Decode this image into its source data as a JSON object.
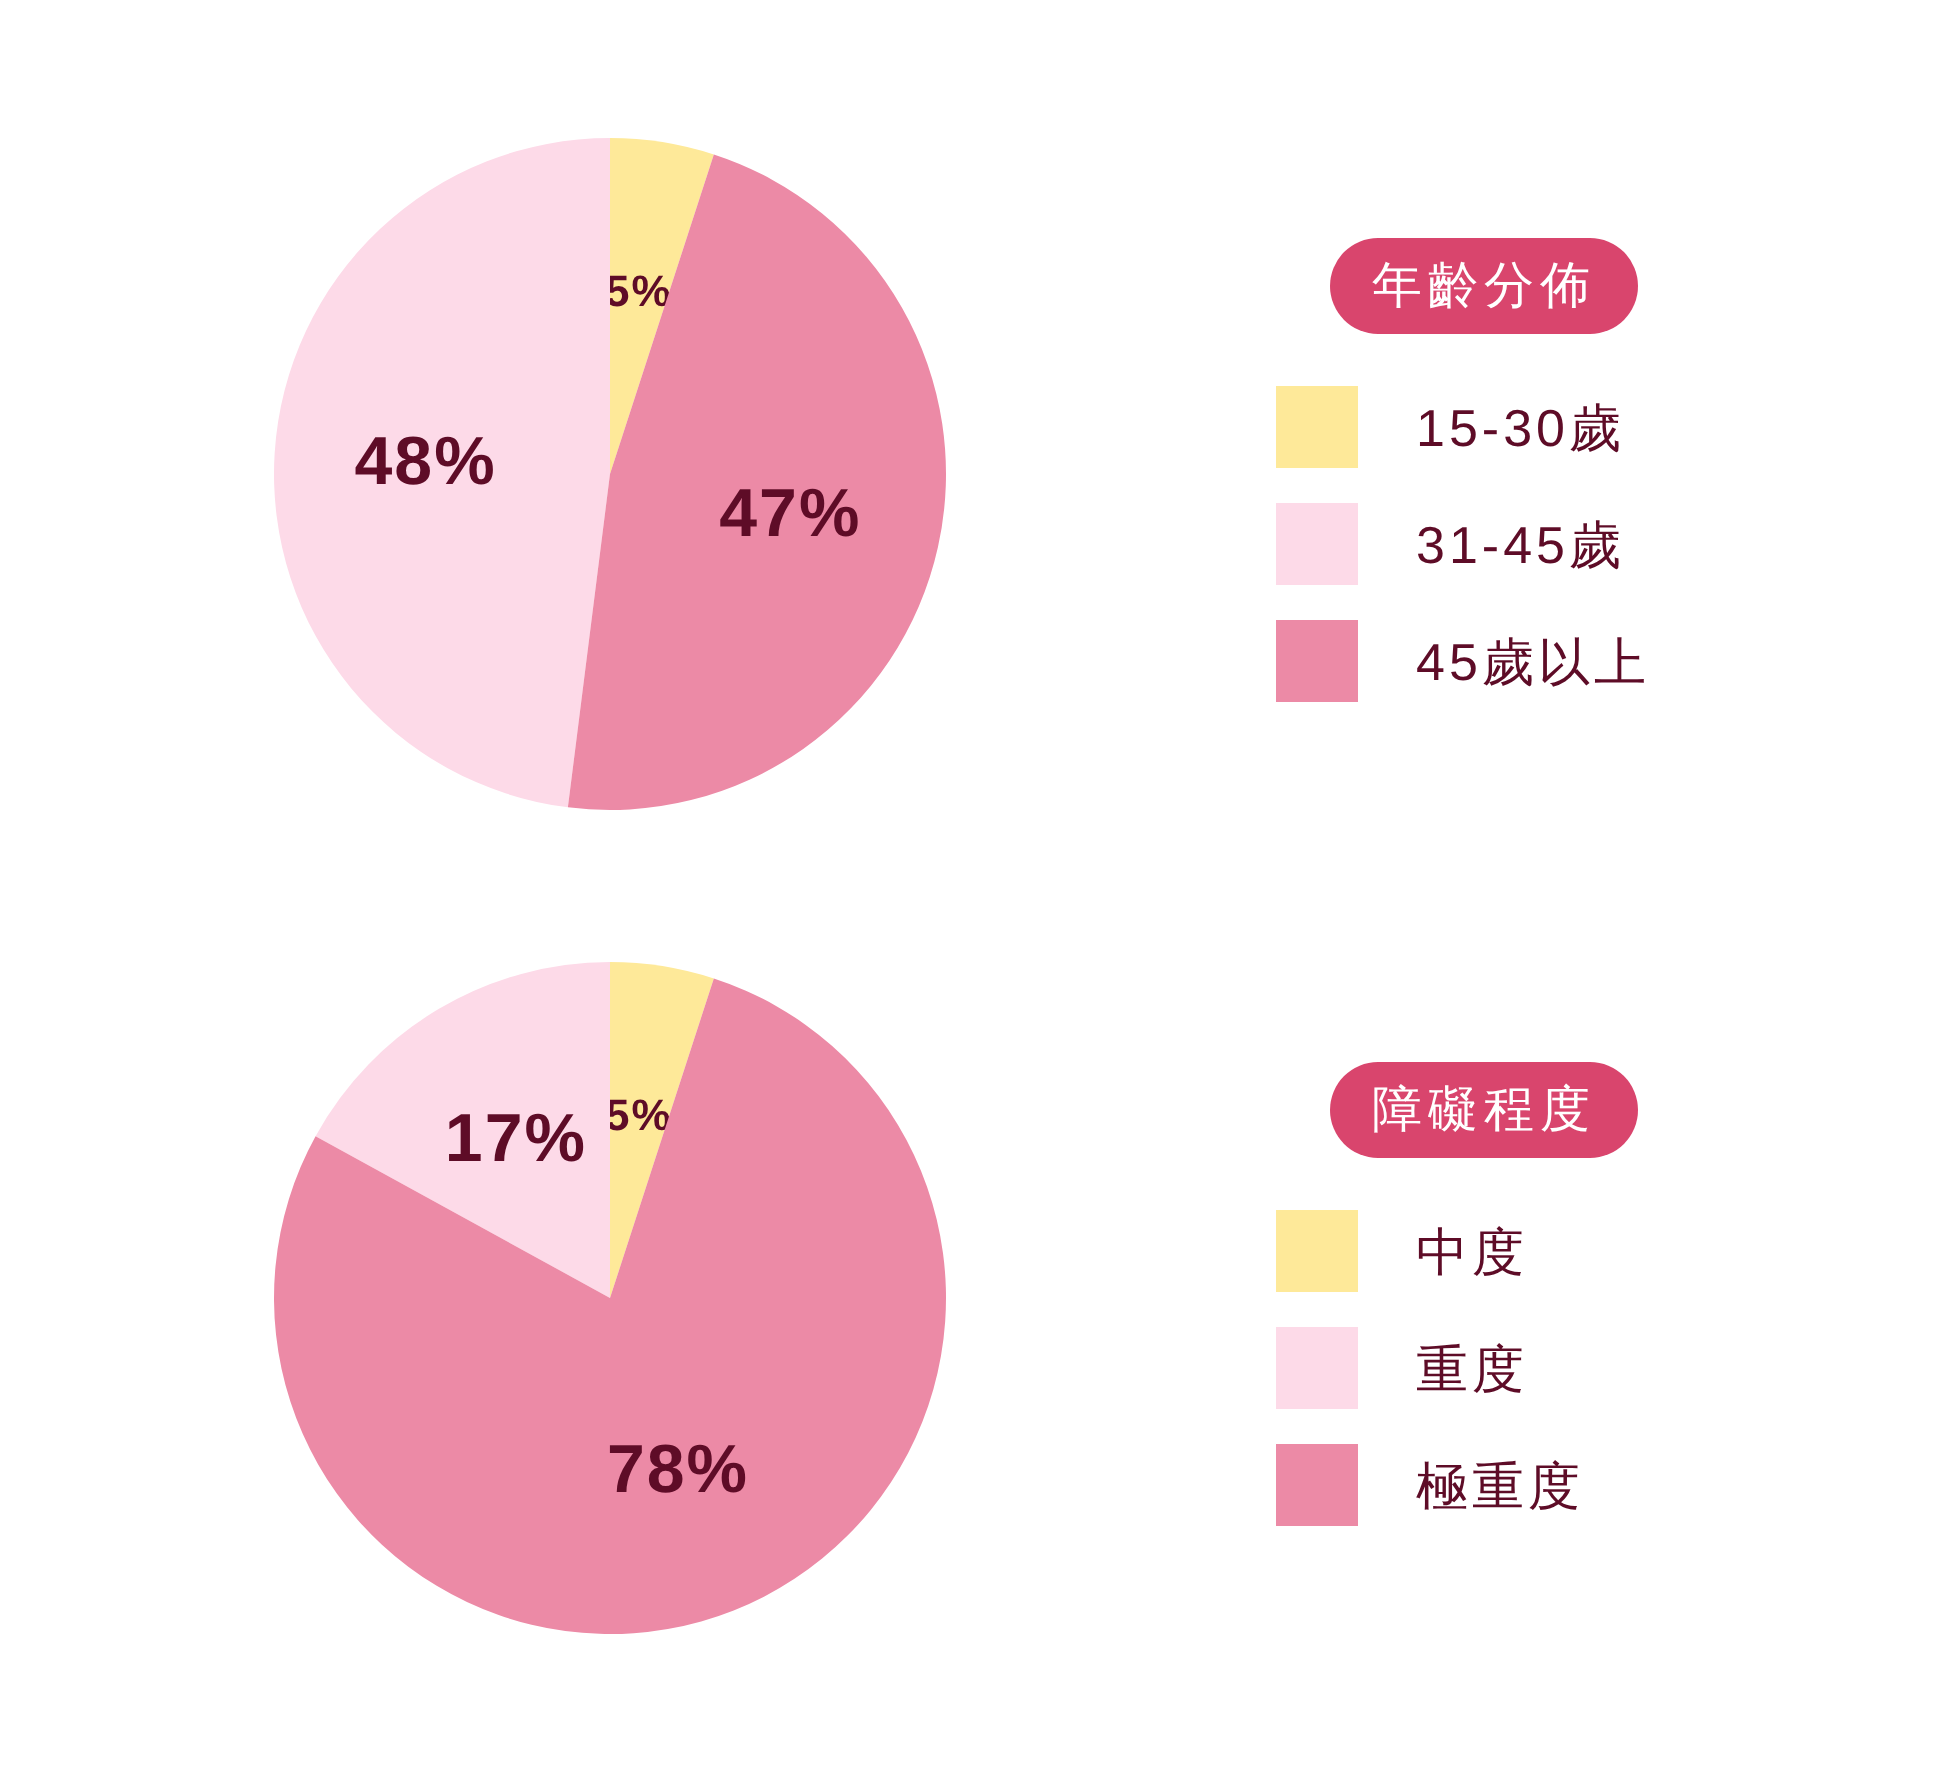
{
  "chart_data": [
    {
      "type": "pie",
      "legend_title": "年齡分佈",
      "categories": [
        "15-30歲",
        "31-45歲",
        "45歲以上"
      ],
      "values": [
        5,
        48,
        47
      ],
      "value_labels": [
        "5%",
        "48%",
        "47%"
      ],
      "colors": [
        "#fee999",
        "#fddae8",
        "#ec8aa6"
      ],
      "legend": "right"
    },
    {
      "type": "pie",
      "legend_title": "障礙程度",
      "categories": [
        "中度",
        "重度",
        "極重度"
      ],
      "values": [
        5,
        17,
        78
      ],
      "value_labels": [
        "5%",
        "17%",
        "78%"
      ],
      "colors": [
        "#fee999",
        "#fddae8",
        "#ec8aa6"
      ],
      "legend": "right"
    }
  ]
}
